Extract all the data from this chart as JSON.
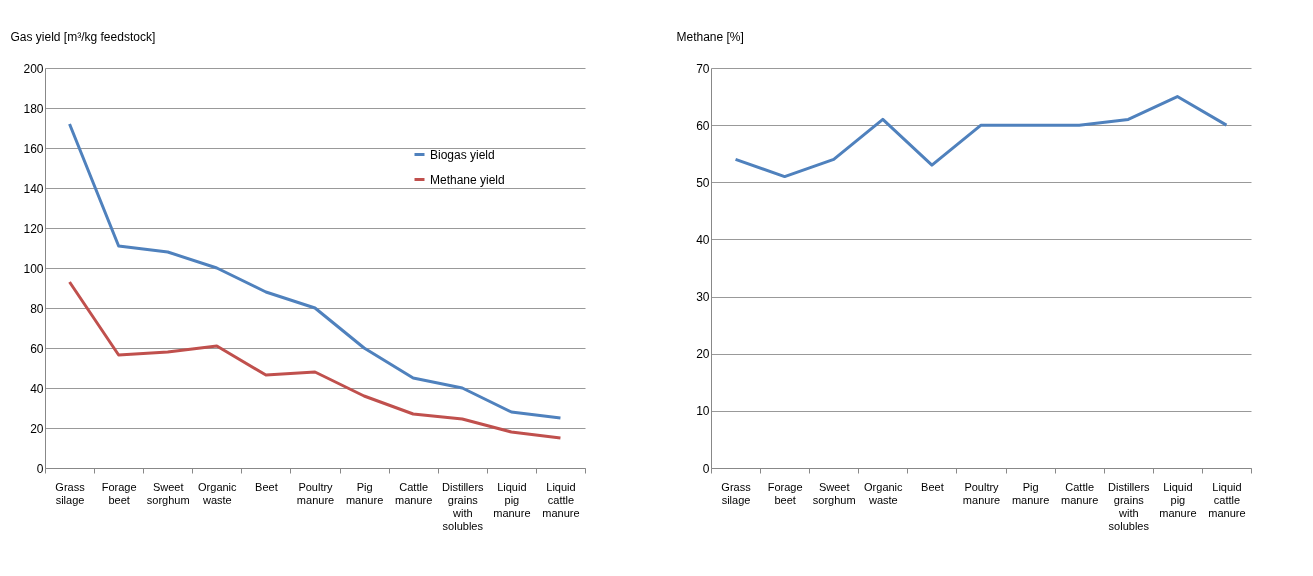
{
  "chart_data": [
    {
      "type": "line",
      "ylabel": "Gas yield [m³/kg feedstock]",
      "categories": [
        "Grass silage",
        "Forage beet",
        "Sweet sorghum",
        "Organic waste",
        "Beet",
        "Poultry manure",
        "Pig manure",
        "Cattle manure",
        "Distillers grains with solubles",
        "Liquid pig manure",
        "Liquid cattle manure"
      ],
      "series": [
        {
          "name": "Biogas yield",
          "color": "#4f81bd",
          "values": [
            172,
            111,
            108,
            100,
            88,
            80,
            60,
            45,
            40,
            28,
            25
          ]
        },
        {
          "name": "Methane yield",
          "color": "#c0504d",
          "values": [
            93,
            56.5,
            58,
            61,
            46.5,
            48,
            36,
            27,
            24.5,
            18,
            15
          ]
        }
      ],
      "ylim": [
        0,
        200
      ],
      "yticks": [
        0,
        20,
        40,
        60,
        80,
        100,
        120,
        140,
        160,
        180,
        200
      ],
      "grid": "y",
      "legend": "top right",
      "marker": "none",
      "line_style": "solid"
    },
    {
      "type": "line",
      "ylabel": "Methane [%]",
      "categories": [
        "Grass silage",
        "Forage beet",
        "Sweet sorghum",
        "Organic waste",
        "Beet",
        "Poultry manure",
        "Pig manure",
        "Cattle manure",
        "Distillers grains with solubles",
        "Liquid pig manure",
        "Liquid cattle manure"
      ],
      "series": [
        {
          "color": "#4f81bd",
          "values": [
            54,
            51,
            54,
            61,
            53,
            60,
            60,
            60,
            61,
            65,
            60
          ]
        }
      ],
      "ylim": [
        0,
        70
      ],
      "yticks": [
        0,
        10,
        20,
        30,
        40,
        50,
        60,
        70
      ],
      "grid": "y",
      "legend": false,
      "marker": "none",
      "line_style": "solid"
    }
  ]
}
